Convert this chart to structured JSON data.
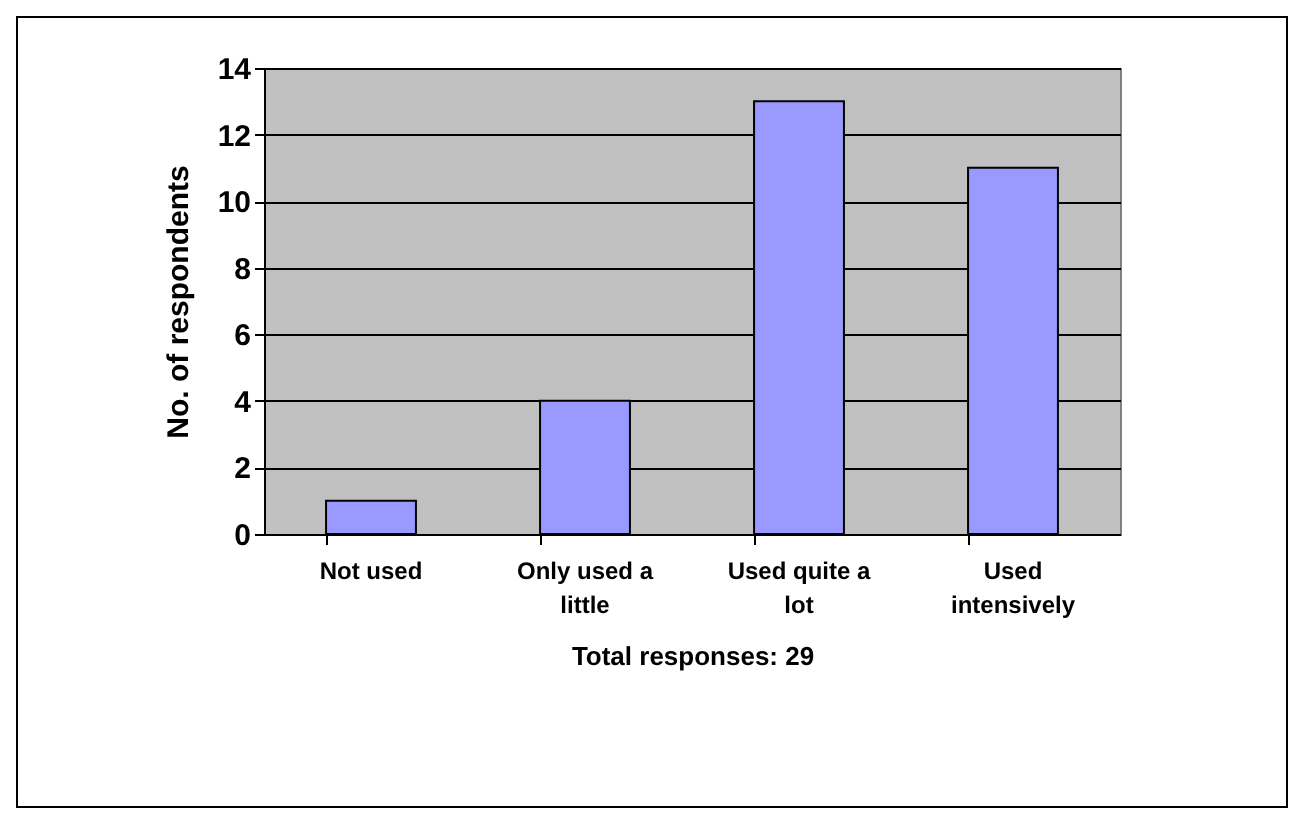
{
  "chart_data": {
    "type": "bar",
    "xlabel": "Total responses: 29",
    "ylabel": "No. of respondents",
    "categories": [
      "Not used",
      "Only used a little",
      "Used quite a lot",
      "Used intensively"
    ],
    "values": [
      1,
      4,
      13,
      11
    ],
    "color": "#9999ff",
    "ylim": [
      0,
      14
    ],
    "yticks": [
      0,
      2,
      4,
      6,
      8,
      10,
      12,
      14
    ],
    "grid": "y"
  }
}
